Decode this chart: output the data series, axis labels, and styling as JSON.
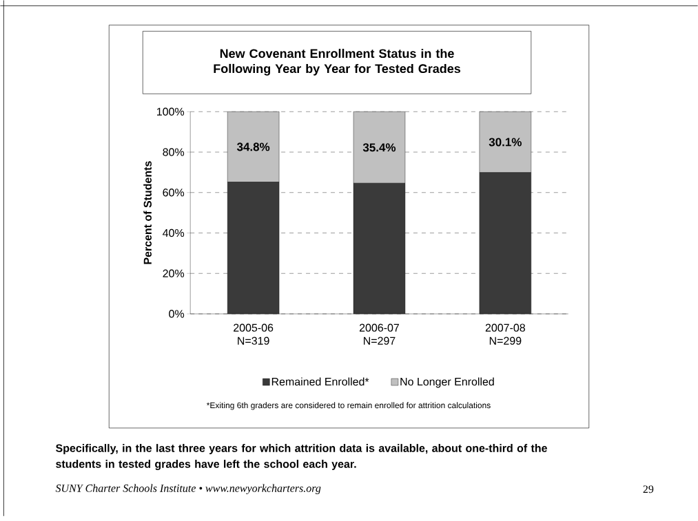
{
  "chart_data": {
    "type": "bar",
    "stacked": true,
    "title": "New Covenant Enrollment Status in the Following Year by Year for Tested Grades",
    "ylabel": "Percent of Students",
    "categories": [
      "2005-06 N=319",
      "2006-07 N=297",
      "2007-08 N=299"
    ],
    "series": [
      {
        "name": "Remained Enrolled*",
        "color": "#3a3a3a",
        "values": [
          65.2,
          64.6,
          69.9
        ]
      },
      {
        "name": "No Longer Enrolled",
        "color": "#c0c0c0",
        "values": [
          34.8,
          35.4,
          30.1
        ],
        "value_labels": [
          "34.8%",
          "35.4%",
          "30.1%"
        ]
      }
    ],
    "ylim": [
      0,
      100
    ],
    "yticks": [
      {
        "value": 0,
        "label": "0%"
      },
      {
        "value": 20,
        "label": "20%"
      },
      {
        "value": 40,
        "label": "40%"
      },
      {
        "value": 60,
        "label": "60%"
      },
      {
        "value": 80,
        "label": "80%"
      },
      {
        "value": 100,
        "label": "100%"
      }
    ],
    "grid": "y",
    "legend": "bottom",
    "annotations": [
      "*Exiting 6th graders are considered to remain enrolled for attrition calculations",
      "Specifically, in the last three years for which attrition data is available, about one-third of the students in tested grades have left the school each year.",
      "SUNY Charter Schools Institute • www.newyorkcharters.org",
      "29"
    ]
  }
}
